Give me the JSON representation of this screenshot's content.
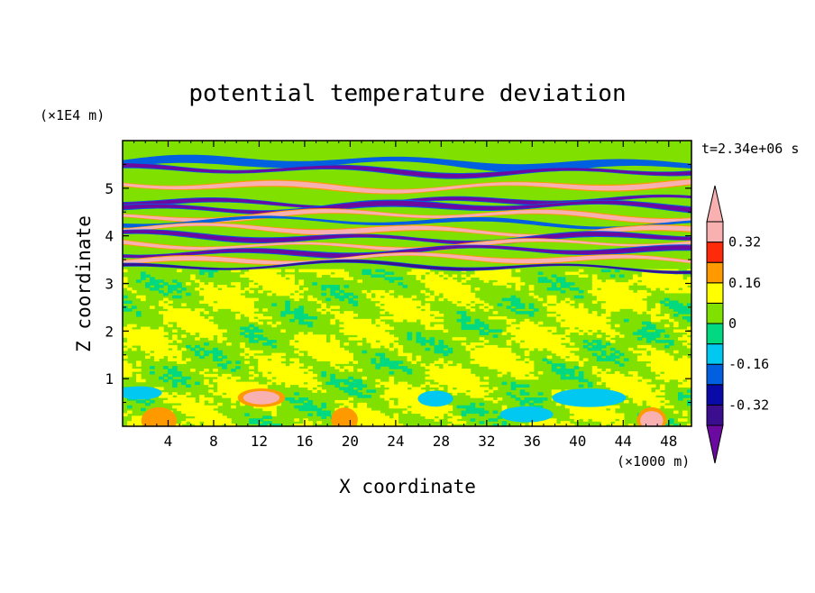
{
  "chart_data": {
    "type": "heatmap",
    "title": "potential temperature deviation",
    "xlabel": "X coordinate",
    "ylabel": "Z coordinate",
    "x_unit": "(×1000 m)",
    "y_unit": "(×1E4 m)",
    "time_label": "t=2.34e+06 s",
    "xlim": [
      0,
      50
    ],
    "ylim": [
      0,
      6
    ],
    "x_ticks": [
      4,
      8,
      12,
      16,
      20,
      24,
      28,
      32,
      36,
      40,
      44,
      48
    ],
    "y_ticks": [
      1,
      2,
      3,
      4,
      5
    ],
    "colorbar": {
      "levels": [
        -0.4,
        -0.32,
        -0.24,
        -0.16,
        -0.08,
        0,
        0.08,
        0.16,
        0.24,
        0.32,
        0.4
      ],
      "labels": [
        "0.32",
        "0.16",
        "0",
        "-0.16",
        "-0.32"
      ],
      "label_values": [
        0.32,
        0.16,
        0,
        -0.16,
        -0.32
      ],
      "colors_bottom_to_top": [
        "#3a0e8f",
        "#0a0aa8",
        "#0060e0",
        "#00c8f0",
        "#00d980",
        "#80e000",
        "#ffff00",
        "#ff9900",
        "#ff2a0a",
        "#f8b0b0"
      ],
      "under_color": "#6a0aa0",
      "over_color": "#f8b0b0"
    },
    "bands": [
      {
        "z": 5.52,
        "thick": 0.16,
        "value": -0.2
      },
      {
        "z": 5.37,
        "thick": 0.12,
        "value": -0.42
      },
      {
        "z": 5.05,
        "thick": 0.14,
        "value": 0.42
      },
      {
        "z": 4.72,
        "thick": 0.1,
        "value": -0.42
      },
      {
        "z": 4.6,
        "thick": 0.14,
        "value": -0.45
      },
      {
        "z": 4.42,
        "thick": 0.12,
        "value": 0.42
      },
      {
        "z": 4.28,
        "thick": 0.08,
        "value": -0.2
      },
      {
        "z": 4.12,
        "thick": 0.13,
        "value": 0.4
      },
      {
        "z": 3.97,
        "thick": 0.12,
        "value": -0.42
      },
      {
        "z": 3.82,
        "thick": 0.1,
        "value": 0.42
      },
      {
        "z": 3.67,
        "thick": 0.12,
        "value": -0.45
      },
      {
        "z": 3.5,
        "thick": 0.12,
        "value": 0.42
      },
      {
        "z": 3.35,
        "thick": 0.08,
        "value": -0.35
      }
    ],
    "blobs": [
      {
        "x": 12.2,
        "z": 0.6,
        "rx": 1.6,
        "rz": 0.14,
        "value": 0.42
      },
      {
        "x": 27.5,
        "z": 0.58,
        "rx": 1.2,
        "rz": 0.12,
        "value": -0.16
      },
      {
        "x": 3.2,
        "z": 0.12,
        "rx": 1.2,
        "rz": 0.2,
        "value": 0.2
      },
      {
        "x": 19.5,
        "z": 0.14,
        "rx": 0.9,
        "rz": 0.18,
        "value": 0.2
      },
      {
        "x": 46.5,
        "z": 0.12,
        "rx": 1.0,
        "rz": 0.2,
        "value": 0.32
      },
      {
        "x": 35.5,
        "z": 0.25,
        "rx": 1.8,
        "rz": 0.12,
        "value": -0.1
      },
      {
        "x": 41,
        "z": 0.6,
        "rx": 2.5,
        "rz": 0.14,
        "value": -0.1
      },
      {
        "x": 1.5,
        "z": 0.7,
        "rx": 1.5,
        "rz": 0.1,
        "value": -0.12
      }
    ]
  }
}
